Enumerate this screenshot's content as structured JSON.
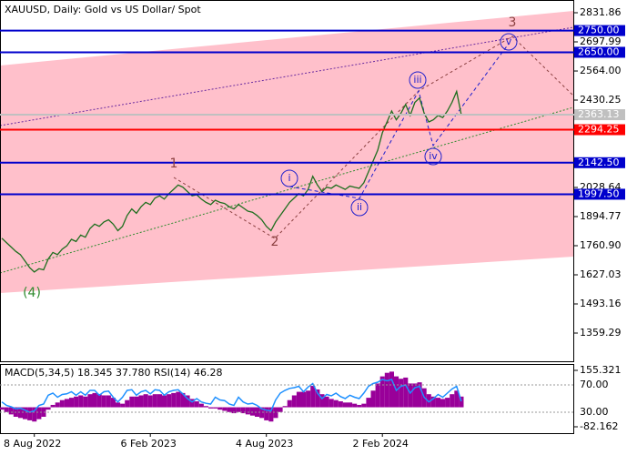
{
  "chart_data": {
    "type": "line",
    "title": "XAUUSD, Daily:  Gold vs US Dollar/ Spot",
    "color": "#1e6e1e",
    "categories": [
      null,
      null,
      null,
      null,
      null,
      null,
      null,
      "8 Aug 2022",
      null,
      null,
      null,
      null,
      null,
      null,
      null,
      null,
      null,
      null,
      null,
      null,
      null,
      null,
      null,
      null,
      null,
      null,
      null,
      null,
      null,
      null,
      null,
      null,
      "6 Feb 2023",
      null,
      null,
      null,
      null,
      null,
      null,
      null,
      null,
      null,
      null,
      null,
      null,
      null,
      null,
      null,
      null,
      null,
      null,
      null,
      null,
      null,
      null,
      null,
      null,
      "4 Aug 2023",
      null,
      null,
      null,
      null,
      null,
      null,
      null,
      null,
      null,
      null,
      null,
      null,
      null,
      null,
      null,
      null,
      null,
      null,
      null,
      null,
      null,
      null,
      null,
      null,
      "2 Feb 2024",
      null,
      null,
      null,
      null,
      null,
      null,
      null,
      null,
      null,
      null,
      null,
      null,
      null,
      null,
      null,
      null,
      null
    ],
    "values": [
      1795,
      1775,
      1755,
      1735,
      1720,
      1690,
      1660,
      1640,
      1655,
      1650,
      1700,
      1730,
      1720,
      1745,
      1760,
      1790,
      1780,
      1810,
      1800,
      1840,
      1860,
      1850,
      1870,
      1880,
      1860,
      1830,
      1850,
      1900,
      1930,
      1910,
      1940,
      1960,
      1950,
      1980,
      1990,
      1975,
      2000,
      2020,
      2040,
      2030,
      2010,
      1990,
      1995,
      1975,
      1960,
      1950,
      1970,
      1960,
      1955,
      1940,
      1930,
      1950,
      1935,
      1920,
      1915,
      1900,
      1880,
      1850,
      1830,
      1870,
      1900,
      1930,
      1960,
      1980,
      2000,
      1990,
      2020,
      2080,
      2040,
      2010,
      2030,
      2025,
      2040,
      2030,
      2020,
      2035,
      2030,
      2025,
      2050,
      2100,
      2150,
      2200,
      2280,
      2330,
      2380,
      2340,
      2370,
      2410,
      2360,
      2420,
      2440,
      2370,
      2330,
      2340,
      2360,
      2350,
      2380,
      2420,
      2470,
      2363
    ],
    "ylim": [
      1225.42,
      2890.43
    ],
    "yticks": [
      2831.86,
      2697.99,
      {
        "value": 2564,
        "label": "2564.00"
      },
      2430.25,
      2028.64,
      1894.77,
      {
        "value": 1760.9,
        "label": "1760.90"
      },
      1627.03,
      1493.16,
      1359.29
    ],
    "levels": [
      {
        "value": 2750,
        "label": "2750.00",
        "color": "#0000cc"
      },
      {
        "value": 2650,
        "label": "2650.00",
        "color": "#0000cc"
      },
      {
        "value": 2363.13,
        "label": "2363.13",
        "color": "#c0c0c0"
      },
      {
        "value": 2294.25,
        "label": "2294.25",
        "color": "#ff0000"
      },
      {
        "value": 2142.5,
        "label": "2142.50",
        "color": "#0000cc"
      },
      {
        "value": 1997.5,
        "label": "1997.50",
        "color": "#0000cc"
      }
    ],
    "annotations": [
      "1",
      "2",
      "3",
      "(4)",
      "i",
      "ii",
      "iii",
      "iv",
      "v"
    ],
    "indicator": {
      "title": "MACD(5,34,5) 18.345 37.780 RSI(14) 46.28",
      "macd": {
        "color": "#990099",
        "ylim": [
          -108.97,
          182.13
        ],
        "yticks": [
          155.321,
          -82.162
        ],
        "values": [
          -10,
          -20,
          -30,
          -40,
          -45,
          -50,
          -55,
          -60,
          -50,
          -40,
          -10,
          10,
          20,
          30,
          35,
          40,
          45,
          50,
          45,
          55,
          60,
          55,
          50,
          50,
          40,
          20,
          15,
          30,
          45,
          45,
          50,
          55,
          50,
          55,
          55,
          50,
          55,
          60,
          65,
          60,
          50,
          35,
          25,
          15,
          5,
          -5,
          -5,
          -10,
          -15,
          -20,
          -25,
          -20,
          -25,
          -30,
          -35,
          -40,
          -45,
          -55,
          -60,
          -45,
          -20,
          5,
          30,
          50,
          65,
          65,
          70,
          90,
          75,
          55,
          45,
          35,
          30,
          25,
          20,
          20,
          15,
          10,
          15,
          40,
          70,
          100,
          130,
          145,
          150,
          130,
          120,
          125,
          100,
          100,
          105,
          80,
          55,
          45,
          40,
          35,
          40,
          55,
          70,
          45
        ]
      },
      "rsi": {
        "color": "#1e90ff",
        "ylim": [
          -0.67,
          100.67
        ],
        "yticks": [
          {
            "value": 70,
            "label": "70.00"
          },
          {
            "value": 30,
            "label": "30.00"
          }
        ],
        "values": [
          45,
          40,
          38,
          35,
          36,
          33,
          30,
          32,
          40,
          42,
          55,
          58,
          52,
          56,
          57,
          60,
          55,
          60,
          55,
          62,
          62,
          55,
          60,
          61,
          52,
          45,
          52,
          62,
          63,
          55,
          60,
          62,
          57,
          63,
          62,
          55,
          60,
          62,
          63,
          57,
          50,
          45,
          50,
          45,
          43,
          42,
          52,
          48,
          47,
          42,
          40,
          52,
          45,
          42,
          43,
          40,
          35,
          33,
          32,
          48,
          58,
          62,
          65,
          66,
          68,
          60,
          67,
          72,
          58,
          50,
          56,
          54,
          58,
          53,
          50,
          55,
          52,
          50,
          58,
          68,
          72,
          74,
          78,
          76,
          78,
          62,
          68,
          70,
          58,
          66,
          68,
          52,
          45,
          50,
          56,
          52,
          58,
          64,
          68,
          46
        ]
      }
    }
  }
}
